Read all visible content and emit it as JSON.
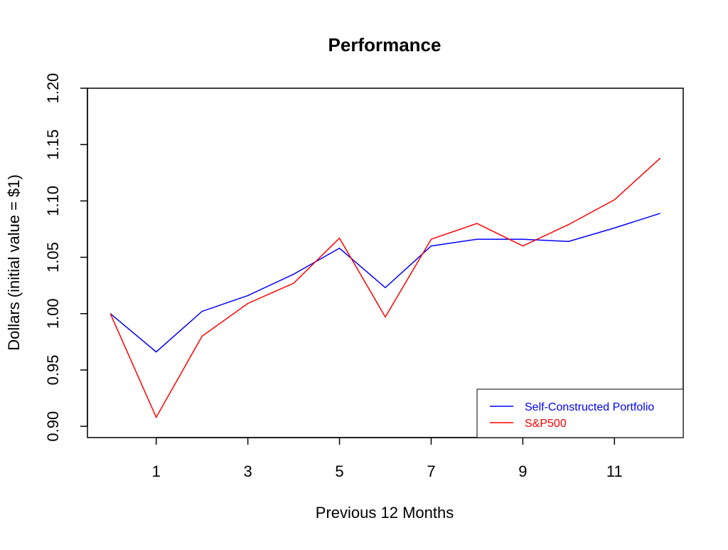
{
  "chart_data": {
    "type": "line",
    "title": "Performance",
    "xlabel": "Previous 12 Months",
    "ylabel": "Dollars (initial value = $1)",
    "xlim": [
      -0.5,
      12.5
    ],
    "ylim": [
      0.89,
      1.2
    ],
    "x_ticks": [
      1,
      3,
      5,
      7,
      9,
      11
    ],
    "y_ticks": [
      0.9,
      0.95,
      1.0,
      1.05,
      1.1,
      1.15,
      1.2
    ],
    "y_tick_labels": [
      "0.90",
      "0.95",
      "1.00",
      "1.05",
      "1.10",
      "1.15",
      "1.20"
    ],
    "x": [
      0,
      1,
      2,
      3,
      4,
      5,
      6,
      7,
      8,
      9,
      10,
      11,
      12
    ],
    "series": [
      {
        "name": "Self-Constructed Portfolio",
        "color": "#0000ff",
        "values": [
          1.0,
          0.966,
          1.002,
          1.016,
          1.035,
          1.058,
          1.023,
          1.06,
          1.066,
          1.066,
          1.064,
          1.076,
          1.089
        ]
      },
      {
        "name": "S&P500",
        "color": "#ff0000",
        "values": [
          1.0,
          0.908,
          0.98,
          1.009,
          1.027,
          1.067,
          0.997,
          1.066,
          1.08,
          1.06,
          1.079,
          1.101,
          1.138
        ]
      }
    ],
    "legend_position": "bottom-right",
    "grid": false
  }
}
